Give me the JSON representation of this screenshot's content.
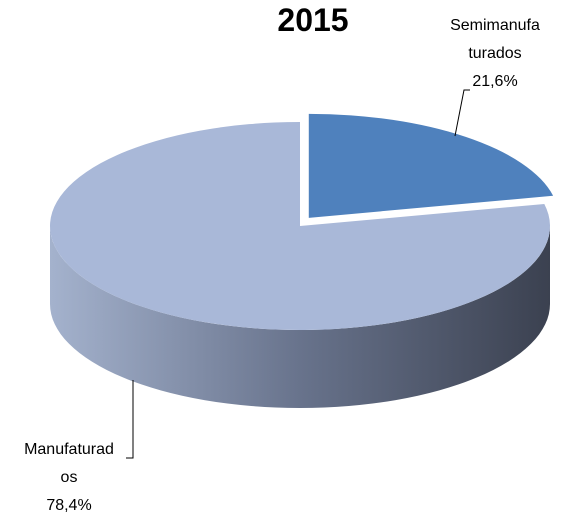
{
  "chart_data": {
    "type": "pie3d",
    "title": "2015",
    "categories": [
      "Semimanufaturados",
      "Manufaturados"
    ],
    "values": [
      21.6,
      78.4
    ],
    "value_labels": [
      "21,6%",
      "78,4%"
    ],
    "colors": [
      "#4f81bd",
      "#a9b8d8"
    ]
  }
}
